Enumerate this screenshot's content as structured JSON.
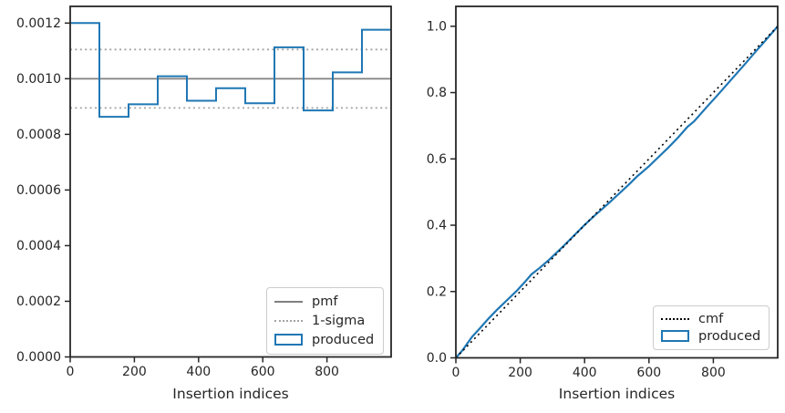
{
  "colors": {
    "produced": "#1f77b4",
    "pmf": "#808080",
    "sigma": "#a3a3a3",
    "cmf": "#000000",
    "axis": "#262626",
    "text": "#262626",
    "legend-border": "#cccccc",
    "background": "#ffffff"
  },
  "chart_data": [
    {
      "type": "bar",
      "subtype": "step-histogram",
      "panel": "left",
      "title": "",
      "xlabel": "Insertion indices",
      "ylabel": "",
      "xlim": [
        0,
        1000
      ],
      "ylim": [
        0,
        0.00126
      ],
      "xticks": [
        0,
        200,
        400,
        600,
        800
      ],
      "xtick_labels": [
        "0",
        "200",
        "400",
        "600",
        "800"
      ],
      "yticks": [
        0,
        0.0002,
        0.0004,
        0.0006,
        0.0008,
        0.001,
        0.0012
      ],
      "ytick_labels": [
        "0.0000",
        "0.0002",
        "0.0004",
        "0.0006",
        "0.0008",
        "0.0010",
        "0.0012"
      ],
      "grid": false,
      "bin_edges": [
        0,
        90.9,
        181.8,
        272.7,
        363.6,
        454.5,
        545.5,
        636.4,
        727.3,
        818.2,
        909.1,
        1000
      ],
      "bin_values": [
        0.0012,
        0.000863,
        0.000908,
        0.001009,
        0.000921,
        0.000966,
        0.000912,
        0.001113,
        0.000886,
        0.001023,
        0.001176
      ],
      "pmf_value": 0.001,
      "sigma_upper": 0.001105,
      "sigma_lower": 0.000895,
      "legend_position": "lower right",
      "legend": [
        {
          "label": "pmf",
          "style": "line-solid-gray"
        },
        {
          "label": "1-sigma",
          "style": "line-dotted-gray"
        },
        {
          "label": "produced",
          "style": "rect-blue"
        }
      ]
    },
    {
      "type": "line",
      "subtype": "cdf-comparison",
      "panel": "right",
      "title": "",
      "xlabel": "Insertion indices",
      "ylabel": "",
      "xlim": [
        0,
        1000
      ],
      "ylim": [
        0,
        1.06
      ],
      "xticks": [
        0,
        200,
        400,
        600,
        800
      ],
      "xtick_labels": [
        "0",
        "200",
        "400",
        "600",
        "800"
      ],
      "yticks": [
        0,
        0.2,
        0.4,
        0.6,
        0.8,
        1.0
      ],
      "ytick_labels": [
        "0.0",
        "0.2",
        "0.4",
        "0.6",
        "0.8",
        "1.0"
      ],
      "grid": false,
      "series": [
        {
          "name": "cmf",
          "style": "dotted-black",
          "x": [
            0,
            1000
          ],
          "y": [
            0,
            1.0
          ]
        },
        {
          "name": "produced",
          "style": "solid-blue",
          "x": [
            0,
            20,
            50,
            80,
            100,
            130,
            160,
            190,
            210,
            235,
            260,
            290,
            330,
            360,
            400,
            430,
            470,
            510,
            540,
            565,
            580,
            600,
            630,
            660,
            690,
            720,
            740,
            760,
            780,
            810,
            840,
            870,
            900,
            930,
            960,
            985,
            1000
          ],
          "y": [
            0,
            0.022,
            0.063,
            0.095,
            0.117,
            0.147,
            0.175,
            0.203,
            0.224,
            0.252,
            0.271,
            0.296,
            0.333,
            0.362,
            0.401,
            0.428,
            0.462,
            0.498,
            0.525,
            0.549,
            0.561,
            0.578,
            0.606,
            0.634,
            0.664,
            0.697,
            0.713,
            0.735,
            0.757,
            0.789,
            0.822,
            0.855,
            0.888,
            0.922,
            0.955,
            0.983,
            1.0
          ]
        }
      ],
      "legend_position": "lower right",
      "legend": [
        {
          "label": "cmf",
          "style": "line-dotted-black"
        },
        {
          "label": "produced",
          "style": "rect-blue"
        }
      ]
    }
  ]
}
